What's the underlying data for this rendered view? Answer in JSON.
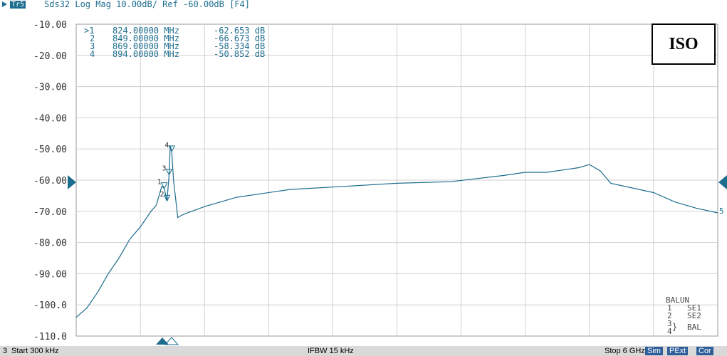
{
  "header": {
    "trace_badge": "Tr5",
    "trace_info": "Sds32 Log Mag 10.00dB/ Ref -60.00dB [F4]"
  },
  "colors": {
    "trace": "#1d6d8e",
    "grid": "#d0d0d0",
    "footer_bg": "#d9d9d9",
    "tag_bg": "#2f5f9a"
  },
  "annotation_box": {
    "label": "ISO"
  },
  "markers": [
    {
      "id": ">1",
      "freq": "824.00000 MHz",
      "value": "-62.653 dB"
    },
    {
      "id": "2",
      "freq": "849.00000 MHz",
      "value": "-66.673 dB"
    },
    {
      "id": "3",
      "freq": "869.00000 MHz",
      "value": "-58.334 dB"
    },
    {
      "id": "4",
      "freq": "894.00000 MHz",
      "value": "-50.852 dB"
    }
  ],
  "balun": {
    "title": "BALUN",
    "rows": [
      {
        "port": "1",
        "label": "SE1"
      },
      {
        "port": "2",
        "label": "SE2"
      },
      {
        "port": "3",
        "label": "BAL"
      },
      {
        "port": "4",
        "label": ""
      }
    ]
  },
  "footer": {
    "channel": "3",
    "start": "Start 300 kHz",
    "ifbw": "IFBW 15 kHz",
    "stop": "Stop 6 GHz",
    "tags": [
      "Sim",
      "PExt",
      "Cor"
    ]
  },
  "chart_data": {
    "type": "line",
    "title": "",
    "xlabel": "",
    "ylabel": "",
    "xlim": [
      0.0003,
      6000
    ],
    "x_unit": "MHz",
    "ylim": [
      -110,
      -10
    ],
    "y_ticks": [
      "-10.00",
      "-20.00",
      "-30.00",
      "-40.00",
      "-50.00",
      "-60.00",
      "-70.00",
      "-80.00",
      "-90.00",
      "-100.0",
      "-110.0"
    ],
    "grid": true,
    "reference_level": -60,
    "trace_end_label": "5",
    "series": [
      {
        "x": [
          0.0003,
          100,
          200,
          300,
          400,
          500,
          600,
          700,
          750,
          800,
          824,
          849,
          869,
          880,
          894,
          910,
          950,
          1000,
          1200,
          1500,
          2000,
          2500,
          3000,
          3500,
          4000,
          4200,
          4400,
          4600,
          4700,
          4800,
          4900,
          5000,
          5200,
          5400,
          5600,
          5800,
          6000
        ],
        "y": [
          -104,
          -101,
          -96,
          -90,
          -85,
          -79,
          -75,
          -70,
          -68,
          -62,
          -62.653,
          -66.673,
          -58.334,
          -49,
          -50.852,
          -60,
          -72,
          -71,
          -68.5,
          -65.5,
          -63,
          -62,
          -61,
          -60.5,
          -58.5,
          -57.5,
          -57.5,
          -56.5,
          -56,
          -55,
          -57,
          -61,
          -62.5,
          -64,
          -67,
          -69,
          -70.5
        ]
      }
    ]
  }
}
